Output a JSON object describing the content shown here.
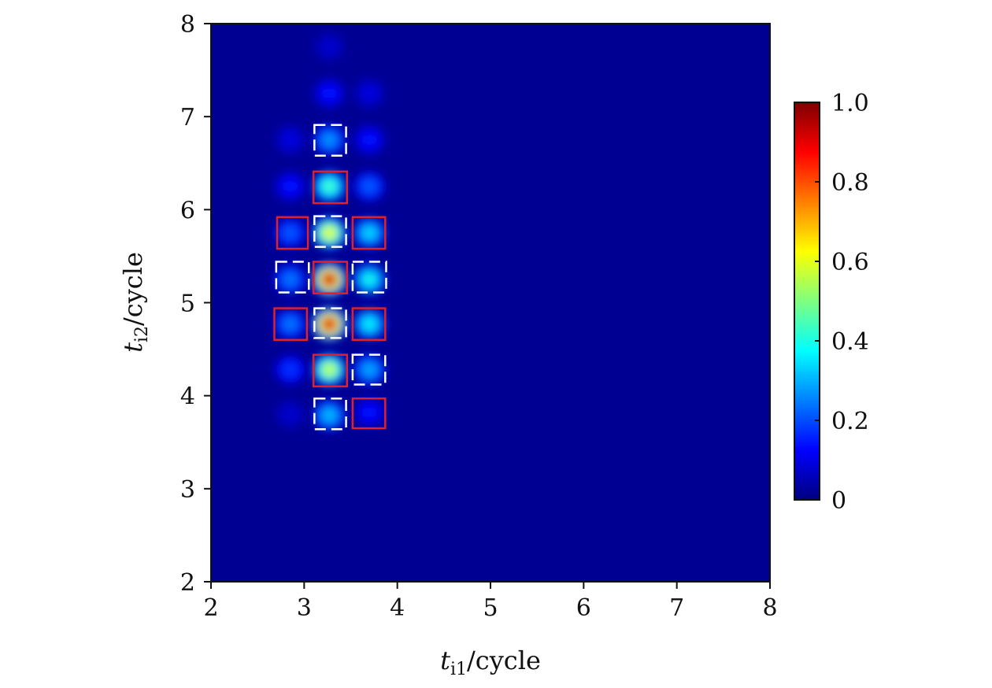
{
  "chart_data": {
    "type": "heatmap",
    "title": "",
    "xlabel": {
      "var": "t",
      "sub": "i1",
      "unit": "/cycle"
    },
    "ylabel": {
      "var": "t",
      "sub": "i2",
      "unit": "/cycle"
    },
    "xlim": [
      2,
      8
    ],
    "ylim": [
      2,
      8
    ],
    "xticks": [
      "2",
      "3",
      "4",
      "5",
      "6",
      "7",
      "8"
    ],
    "yticks": [
      "2",
      "3",
      "4",
      "5",
      "6",
      "7",
      "8"
    ],
    "background_value": 0.02,
    "colorbar": {
      "range": [
        0,
        1
      ],
      "ticks": [
        "0",
        "0.2",
        "0.4",
        "0.6",
        "0.8",
        "1.0"
      ],
      "colormap": "jet",
      "colors": [
        "#00007f",
        "#0000ff",
        "#007fff",
        "#00ffff",
        "#7fff7f",
        "#ffff00",
        "#ff7f00",
        "#ff0000",
        "#7f0000"
      ]
    },
    "spots": [
      {
        "x": 3.27,
        "y": 5.25,
        "value": 0.95
      },
      {
        "x": 3.27,
        "y": 4.77,
        "value": 0.93
      },
      {
        "x": 3.27,
        "y": 5.75,
        "value": 0.62
      },
      {
        "x": 3.27,
        "y": 4.28,
        "value": 0.58
      },
      {
        "x": 3.27,
        "y": 6.25,
        "value": 0.45
      },
      {
        "x": 3.27,
        "y": 3.79,
        "value": 0.32
      },
      {
        "x": 3.27,
        "y": 6.75,
        "value": 0.28
      },
      {
        "x": 3.27,
        "y": 7.25,
        "value": 0.15
      },
      {
        "x": 3.27,
        "y": 7.75,
        "value": 0.08
      },
      {
        "x": 3.7,
        "y": 5.25,
        "value": 0.4
      },
      {
        "x": 3.7,
        "y": 4.77,
        "value": 0.38
      },
      {
        "x": 3.7,
        "y": 5.75,
        "value": 0.35
      },
      {
        "x": 3.7,
        "y": 4.28,
        "value": 0.3
      },
      {
        "x": 3.7,
        "y": 6.25,
        "value": 0.22
      },
      {
        "x": 3.7,
        "y": 6.75,
        "value": 0.15
      },
      {
        "x": 3.7,
        "y": 3.82,
        "value": 0.15
      },
      {
        "x": 3.7,
        "y": 7.25,
        "value": 0.1
      },
      {
        "x": 2.85,
        "y": 5.25,
        "value": 0.25
      },
      {
        "x": 2.85,
        "y": 4.77,
        "value": 0.25
      },
      {
        "x": 2.85,
        "y": 5.75,
        "value": 0.22
      },
      {
        "x": 2.85,
        "y": 4.28,
        "value": 0.18
      },
      {
        "x": 2.85,
        "y": 6.25,
        "value": 0.15
      },
      {
        "x": 2.85,
        "y": 6.75,
        "value": 0.1
      },
      {
        "x": 2.85,
        "y": 3.8,
        "value": 0.08
      }
    ],
    "annotation_boxes": [
      {
        "style": "solid",
        "color": "#e0202a",
        "x": [
          3.1,
          3.46
        ],
        "y": [
          6.07,
          6.41
        ]
      },
      {
        "style": "solid",
        "color": "#e0202a",
        "x": [
          2.71,
          3.04
        ],
        "y": [
          5.58,
          5.92
        ]
      },
      {
        "style": "solid",
        "color": "#e0202a",
        "x": [
          3.52,
          3.87
        ],
        "y": [
          5.58,
          5.92
        ]
      },
      {
        "style": "solid",
        "color": "#e0202a",
        "x": [
          3.1,
          3.46
        ],
        "y": [
          5.1,
          5.44
        ]
      },
      {
        "style": "solid",
        "color": "#e0202a",
        "x": [
          2.68,
          3.03
        ],
        "y": [
          4.6,
          4.94
        ]
      },
      {
        "style": "solid",
        "color": "#e0202a",
        "x": [
          3.52,
          3.87
        ],
        "y": [
          4.6,
          4.94
        ]
      },
      {
        "style": "solid",
        "color": "#e0202a",
        "x": [
          3.1,
          3.46
        ],
        "y": [
          4.1,
          4.44
        ]
      },
      {
        "style": "solid",
        "color": "#e0202a",
        "x": [
          3.52,
          3.87
        ],
        "y": [
          3.65,
          3.97
        ]
      },
      {
        "style": "dashed",
        "color": "#ffffff",
        "x": [
          3.11,
          3.45
        ],
        "y": [
          6.58,
          6.91
        ]
      },
      {
        "style": "dashed",
        "color": "#ffffff",
        "x": [
          3.11,
          3.45
        ],
        "y": [
          5.6,
          5.93
        ]
      },
      {
        "style": "dashed",
        "color": "#ffffff",
        "x": [
          2.7,
          3.05
        ],
        "y": [
          5.11,
          5.44
        ]
      },
      {
        "style": "dashed",
        "color": "#ffffff",
        "x": [
          3.52,
          3.88
        ],
        "y": [
          5.11,
          5.44
        ]
      },
      {
        "style": "dashed",
        "color": "#ffffff",
        "x": [
          3.11,
          3.45
        ],
        "y": [
          4.62,
          4.94
        ]
      },
      {
        "style": "dashed",
        "color": "#ffffff",
        "x": [
          3.52,
          3.87
        ],
        "y": [
          4.12,
          4.44
        ]
      },
      {
        "style": "dashed",
        "color": "#ffffff",
        "x": [
          3.11,
          3.45
        ],
        "y": [
          3.64,
          3.97
        ]
      }
    ]
  }
}
